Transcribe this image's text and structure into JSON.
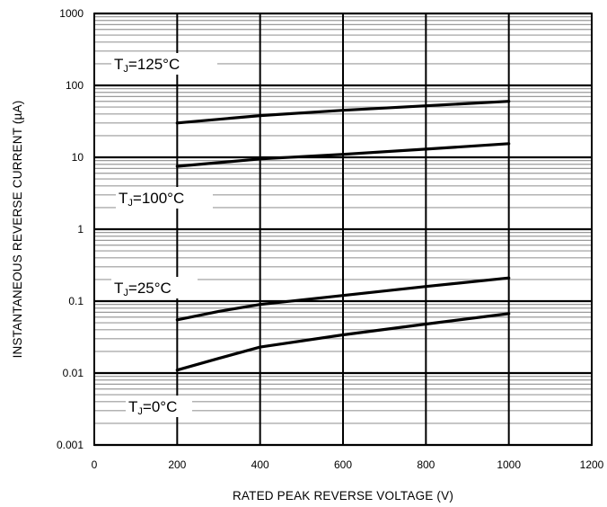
{
  "chart_data": {
    "type": "line",
    "title": "",
    "xlabel": "RATED PEAK REVERSE VOLTAGE (V)",
    "ylabel": "INSTANTANEOUS REVERSE CURRENT (µA)",
    "xlim": [
      0,
      1200
    ],
    "ylim": [
      0.001,
      1000
    ],
    "yscale": "log",
    "grid": true,
    "x_ticks": [
      "0",
      "200",
      "400",
      "600",
      "800",
      "1000",
      "1200"
    ],
    "y_ticks": [
      "0.001",
      "0.01",
      "0.1",
      "1",
      "10",
      "100",
      "1000"
    ],
    "series": [
      {
        "name": "TJ=125°C",
        "label_main": "T",
        "label_sub": "J",
        "label_rest": "=125°C",
        "x": [
          200,
          400,
          600,
          800,
          1000
        ],
        "y": [
          30,
          38,
          45,
          52,
          60
        ]
      },
      {
        "name": "TJ=100°C",
        "label_main": "T",
        "label_sub": "J",
        "label_rest": "=100°C",
        "x": [
          200,
          400,
          600,
          800,
          1000
        ],
        "y": [
          7.5,
          9.5,
          11,
          13,
          15.5
        ]
      },
      {
        "name": "TJ=25°C",
        "label_main": "T",
        "label_sub": "J",
        "label_rest": "=25°C",
        "x": [
          200,
          300,
          400,
          600,
          800,
          1000
        ],
        "y": [
          0.055,
          0.072,
          0.09,
          0.12,
          0.16,
          0.21
        ]
      },
      {
        "name": "TJ=0°C",
        "label_main": "T",
        "label_sub": "J",
        "label_rest": "=0°C",
        "x": [
          200,
          300,
          400,
          600,
          800,
          1000
        ],
        "y": [
          0.011,
          0.016,
          0.023,
          0.034,
          0.048,
          0.067
        ]
      }
    ]
  }
}
